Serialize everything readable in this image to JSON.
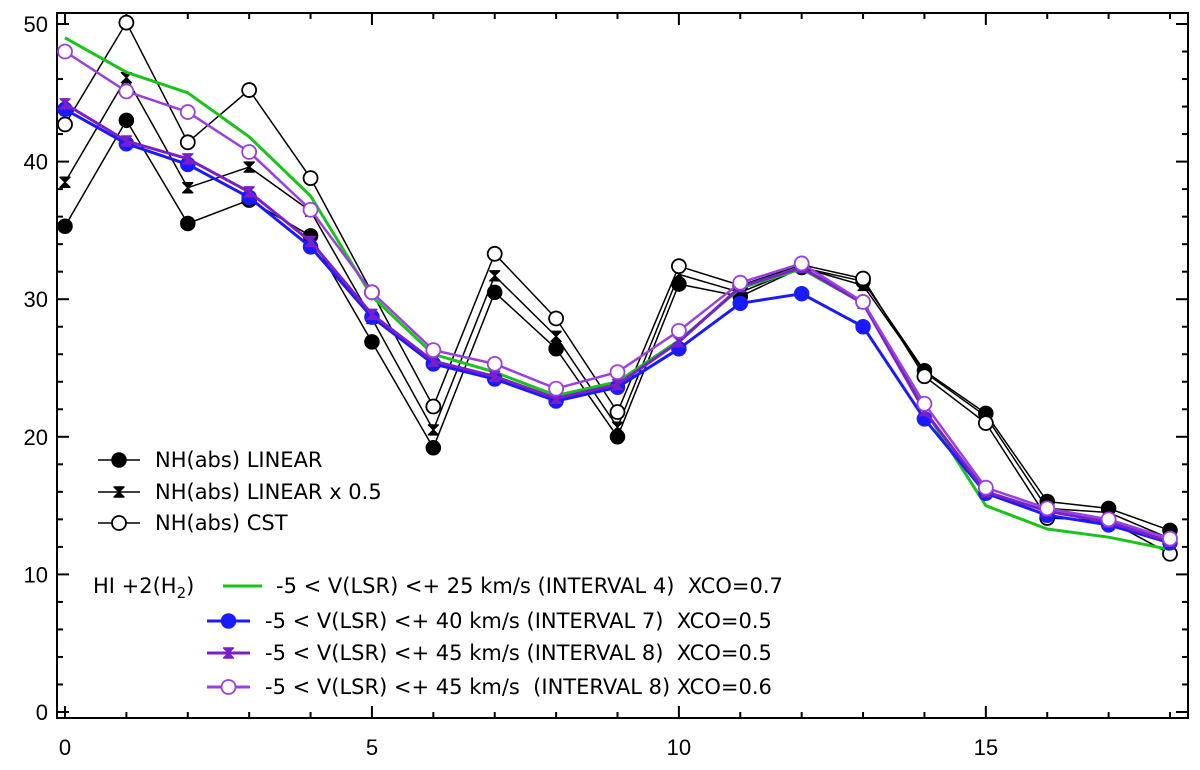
{
  "chart_data": {
    "type": "line",
    "title": "",
    "xlabel": "",
    "ylabel": "",
    "xlim": [
      0,
      18
    ],
    "ylim": [
      0,
      50
    ],
    "xticks": [
      0,
      5,
      10,
      15
    ],
    "yticks": [
      0,
      10,
      20,
      30,
      40,
      50
    ],
    "x": [
      0,
      1,
      2,
      3,
      4,
      5,
      6,
      7,
      8,
      9,
      10,
      11,
      12,
      13,
      14,
      15,
      16,
      17,
      18
    ],
    "series": [
      {
        "name": "NH(abs) LINEAR",
        "color": "#000000",
        "marker": "filled-circle",
        "values": [
          35.3,
          43.0,
          35.5,
          37.2,
          34.6,
          26.9,
          19.2,
          30.5,
          26.4,
          20.0,
          31.1,
          30.2,
          32.3,
          31.3,
          24.8,
          21.7,
          15.3,
          14.8,
          13.2
        ]
      },
      {
        "name": "NH(abs) LINEAR x 0.5",
        "color": "#000000",
        "marker": "bowtie",
        "values": [
          38.5,
          46.1,
          38.1,
          39.6,
          36.4,
          28.6,
          20.5,
          31.7,
          27.3,
          20.7,
          31.8,
          30.5,
          32.3,
          31.0,
          24.7,
          21.5,
          14.8,
          14.5,
          12.6
        ]
      },
      {
        "name": "NH(abs) CST",
        "color": "#000000",
        "marker": "open-circle",
        "values": [
          42.7,
          50.1,
          41.4,
          45.2,
          38.8,
          30.5,
          22.2,
          33.3,
          28.6,
          21.8,
          32.4,
          31.0,
          32.5,
          31.5,
          24.4,
          21.0,
          14.1,
          13.9,
          11.5
        ]
      },
      {
        "name": "-5 < V(LSR) <+ 25 km/s (INTERVAL 4)  XCO=0.7",
        "color": "#19c419",
        "marker": "none",
        "values": [
          49.0,
          46.5,
          45.0,
          41.8,
          37.5,
          30.2,
          26.0,
          24.7,
          23.0,
          24.0,
          27.0,
          30.8,
          32.2,
          29.7,
          22.0,
          15.0,
          13.3,
          12.7,
          11.8
        ]
      },
      {
        "name": "-5 < V(LSR) <+ 40 km/s (INTERVAL 7)  XCO=0.5",
        "color": "#1a1aff",
        "marker": "filled-circle",
        "values": [
          43.8,
          41.3,
          39.8,
          37.4,
          33.8,
          28.7,
          25.3,
          24.2,
          22.6,
          23.6,
          26.4,
          29.7,
          30.4,
          28.0,
          21.3,
          15.9,
          14.3,
          13.6,
          12.3
        ]
      },
      {
        "name": "-5 < V(LSR) <+ 45 km/s (INTERVAL 8)  XCO=0.5",
        "color": "#7a1fc9",
        "marker": "bowtie",
        "values": [
          44.2,
          41.5,
          40.2,
          37.8,
          34.2,
          28.9,
          25.5,
          24.4,
          22.8,
          23.8,
          26.9,
          30.9,
          32.3,
          29.7,
          21.9,
          16.0,
          14.6,
          13.8,
          12.4
        ]
      },
      {
        "name": "-5 < V(LSR) <+ 45 km/s  (INTERVAL 8) XCO=0.6",
        "color": "#9a40e0",
        "marker": "open-circle",
        "values": [
          48.0,
          45.1,
          43.6,
          40.7,
          36.5,
          30.5,
          26.3,
          25.3,
          23.5,
          24.7,
          27.7,
          31.2,
          32.6,
          29.8,
          22.4,
          16.3,
          14.8,
          14.0,
          12.6
        ]
      }
    ],
    "legend": {
      "placement": "bottom-left",
      "group_label_prefix": "HI +2(H",
      "group_label_sub": "2",
      "group_label_suffix": ")"
    }
  }
}
